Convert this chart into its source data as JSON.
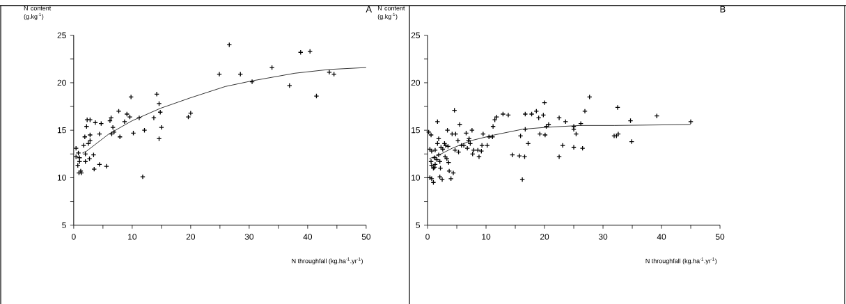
{
  "chart_data": [
    {
      "type": "scatter",
      "title": "A",
      "xlabel": "N throughfall (kg.ha$^{-1}$.yr$^{-1}$)",
      "ylabel": "N content (g.kg$^{-1}$)",
      "xlim": [
        0,
        50
      ],
      "ylim": [
        5,
        25
      ],
      "xticks": [
        0,
        {
          "value": 5,
          "label": null
        },
        10,
        {
          "value": 15,
          "label": null
        },
        20,
        {
          "value": 25,
          "label": null
        },
        30,
        {
          "value": 35,
          "label": null
        },
        40,
        {
          "value": 45,
          "label": null
        },
        50
      ],
      "yticks": [
        5,
        {
          "value": 7.5,
          "label": null
        },
        10,
        {
          "value": 12.5,
          "label": null
        },
        15,
        {
          "value": 17.5,
          "label": null
        },
        20,
        {
          "value": 22.5,
          "label": null
        },
        25
      ],
      "series": [
        {
          "marker": "cross",
          "color": "#000000",
          "x": [
            0.4,
            0.4,
            0.8,
            0.7,
            1.0,
            0.9,
            1.2,
            1.3,
            1.0,
            1.7,
            1.9,
            2.0,
            2.0,
            2.2,
            2.3,
            2.8,
            2.5,
            2.8,
            2.8,
            2.7,
            3.4,
            3.5,
            3.7,
            4.4,
            4.4,
            4.7,
            5.6,
            6.2,
            6.4,
            6.5,
            6.7,
            6.9,
            7.7,
            7.9,
            8.7,
            9.1,
            9.6,
            9.8,
            10.2,
            11.2,
            11.8,
            12.1,
            13.7,
            14.2,
            14.6,
            14.8,
            15.0,
            14.6,
            19.6,
            20.0,
            24.9,
            26.6,
            28.5,
            30.5,
            33.9,
            36.9,
            38.8,
            40.4,
            41.5,
            43.7,
            44.5
          ],
          "values": [
            13.1,
            12.2,
            12.6,
            11.3,
            11.7,
            10.5,
            10.7,
            10.5,
            12.1,
            13.4,
            14.3,
            12.5,
            11.7,
            15.4,
            16.1,
            16.1,
            13.6,
            13.9,
            14.5,
            12.0,
            12.4,
            10.9,
            15.8,
            11.4,
            14.6,
            15.7,
            11.2,
            16.0,
            16.3,
            14.6,
            15.3,
            14.8,
            17.0,
            14.3,
            15.9,
            16.7,
            16.4,
            18.5,
            14.7,
            16.3,
            10.1,
            15.0,
            16.3,
            18.8,
            17.8,
            16.9,
            15.3,
            14.1,
            16.4,
            16.8,
            20.9,
            24.0,
            20.9,
            20.1,
            21.6,
            19.7,
            23.2,
            23.3,
            18.6,
            21.1,
            20.9
          ]
        },
        {
          "type": "line",
          "color": "#000000",
          "x": [
            1.5,
            2.2,
            6,
            10,
            14.8,
            19.9,
            25.9,
            30.5,
            37.8,
            43.7,
            50
          ],
          "values": [
            12.6,
            12.8,
            14.6,
            16.0,
            17.3,
            18.4,
            19.6,
            20.2,
            21.0,
            21.4,
            21.6
          ]
        }
      ]
    },
    {
      "type": "scatter",
      "title": "B",
      "xlabel": "N throughfall (kg.ha$^{-1}$.yr$^{-1}$)",
      "ylabel": "N content (g.kg$^{-1}$)",
      "xlim": [
        0,
        50
      ],
      "ylim": [
        5,
        25
      ],
      "xticks": [
        0,
        {
          "value": 5,
          "label": null
        },
        10,
        {
          "value": 15,
          "label": null
        },
        20,
        {
          "value": 25,
          "label": null
        },
        30,
        {
          "value": 35,
          "label": null
        },
        40,
        {
          "value": 45,
          "label": null
        },
        50
      ],
      "yticks": [
        5,
        {
          "value": 7.5,
          "label": null
        },
        10,
        {
          "value": 12.5,
          "label": null
        },
        15,
        {
          "value": 17.5,
          "label": null
        },
        20,
        {
          "value": 22.5,
          "label": null
        },
        25
      ],
      "series": [
        {
          "marker": "cross",
          "color": "#000000",
          "x": [
            0.2,
            0.6,
            0.4,
            0.7,
            0.6,
            0.4,
            0.7,
            1.0,
            0.7,
            1.0,
            1.2,
            1.3,
            1.3,
            1.2,
            1.7,
            1.6,
            1.7,
            1.9,
            1.9,
            2.1,
            2.2,
            2.1,
            2.5,
            2.3,
            2.6,
            2.9,
            3.0,
            3.1,
            3.3,
            3.4,
            3.5,
            3.6,
            3.7,
            4.0,
            4.4,
            4.2,
            4.8,
            4.6,
            4.7,
            5.2,
            5.3,
            5.5,
            5.8,
            6.2,
            6.6,
            6.8,
            7.0,
            7.1,
            7.3,
            7.6,
            7.7,
            7.9,
            8.6,
            8.8,
            9.2,
            9.3,
            9.5,
            10.2,
            10.5,
            11.1,
            11.2,
            11.5,
            11.8,
            12.9,
            13.8,
            14.5,
            15.7,
            15.9,
            16.2,
            16.6,
            16.7,
            16.7,
            17.2,
            17.8,
            18.6,
            19.0,
            19.2,
            19.8,
            20.0,
            20.1,
            20.3,
            20.7,
            22.5,
            22.5,
            23.1,
            23.6,
            25.0,
            25.0,
            25.0,
            25.4,
            26.2,
            26.5,
            26.9,
            27.7,
            31.9,
            32.3,
            32.5,
            32.6,
            34.7,
            34.9,
            39.2,
            45.0
          ],
          "values": [
            14.8,
            14.5,
            13.0,
            12.8,
            11.7,
            10.0,
            9.9,
            9.5,
            11.3,
            11.0,
            12.1,
            12.9,
            11.4,
            11.1,
            15.9,
            11.9,
            13.6,
            14.1,
            12.4,
            11.7,
            11.0,
            10.1,
            9.8,
            13.2,
            13.0,
            13.6,
            12.2,
            13.4,
            12.0,
            15.0,
            13.3,
            11.6,
            10.7,
            9.9,
            10.5,
            14.6,
            14.6,
            17.1,
            12.9,
            13.9,
            12.7,
            15.6,
            13.4,
            13.4,
            14.7,
            13.1,
            13.9,
            14.1,
            13.6,
            15.0,
            12.5,
            12.9,
            12.9,
            12.2,
            12.8,
            13.4,
            14.6,
            13.4,
            14.3,
            14.3,
            15.4,
            16.1,
            16.4,
            16.7,
            16.6,
            12.4,
            12.3,
            14.4,
            9.8,
            12.2,
            16.7,
            15.1,
            13.6,
            16.7,
            17.0,
            16.3,
            14.6,
            16.6,
            17.9,
            14.5,
            15.4,
            15.6,
            16.3,
            12.2,
            13.4,
            15.9,
            15.1,
            15.4,
            13.2,
            14.6,
            15.7,
            13.1,
            17.0,
            18.5,
            14.4,
            14.4,
            17.4,
            14.6,
            16.0,
            13.8,
            16.5,
            15.9
          ]
        },
        {
          "type": "line",
          "color": "#000000",
          "x": [
            0.3,
            2.3,
            4.2,
            7.4,
            11.4,
            16.2,
            20.1,
            26.1,
            32,
            45
          ],
          "values": [
            12.0,
            12.5,
            13.1,
            13.9,
            14.5,
            15.1,
            15.3,
            15.5,
            15.5,
            15.6
          ]
        }
      ]
    }
  ]
}
